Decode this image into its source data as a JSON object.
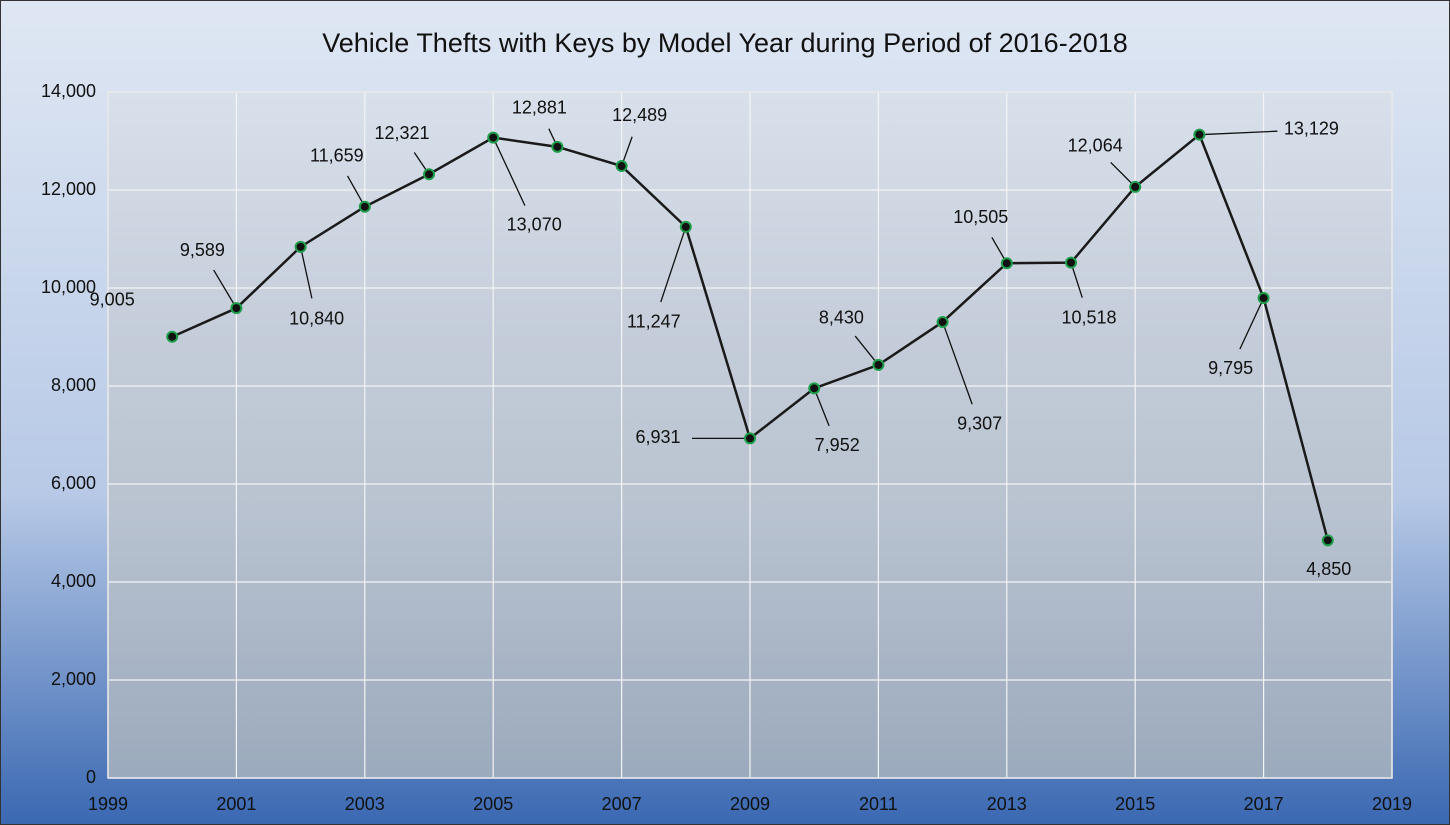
{
  "chart_data": {
    "type": "line",
    "title": "Vehicle Thefts with Keys by Model Year during Period of 2016-2018",
    "x": [
      2000,
      2001,
      2002,
      2003,
      2004,
      2005,
      2006,
      2007,
      2008,
      2009,
      2010,
      2011,
      2012,
      2013,
      2014,
      2015,
      2016,
      2017,
      2018
    ],
    "values": [
      9005,
      9589,
      10840,
      11659,
      12321,
      13070,
      12881,
      12489,
      11247,
      6931,
      7952,
      8430,
      9307,
      10505,
      10518,
      12064,
      13129,
      9795,
      4850
    ],
    "value_labels": [
      "9,005",
      "9,589",
      "10,840",
      "11,659",
      "12,321",
      "13,070",
      "12,881",
      "12,489",
      "11,247",
      "6,931",
      "7,952",
      "8,430",
      "9,307",
      "10,505",
      "10,518",
      "12,064",
      "13,129",
      "9,795",
      "4,850"
    ],
    "color": "#1a1a1a",
    "marker_color": "#1e9e4a",
    "xlim": [
      1999,
      2019
    ],
    "xticks": [
      1999,
      2001,
      2003,
      2005,
      2007,
      2009,
      2011,
      2013,
      2015,
      2017,
      2019
    ],
    "ylim": [
      0,
      14000
    ],
    "yticks": [
      0,
      {
        "value": 2000,
        "label": "2,000"
      },
      {
        "value": 4000,
        "label": "4,000"
      },
      {
        "value": 6000,
        "label": "6,000"
      },
      {
        "value": 8000,
        "label": "8,000"
      },
      {
        "value": 10000,
        "label": "10,000"
      },
      {
        "value": 12000,
        "label": "12,000"
      },
      {
        "value": 14000,
        "label": "14,000"
      }
    ],
    "grid": true
  }
}
